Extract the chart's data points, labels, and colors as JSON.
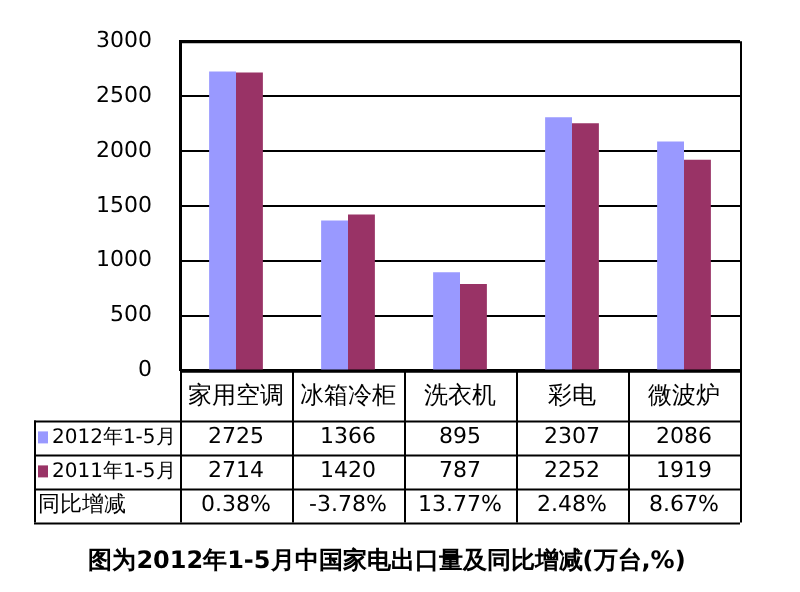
{
  "chart_data": {
    "type": "bar",
    "title": "图为2012年1-5月中国家电出口量及同比增减(万台,%)",
    "categories": [
      "家用空调",
      "冰箱冷柜",
      "洗衣机",
      "彩电",
      "微波炉"
    ],
    "series": [
      {
        "name": "2012年1-5月",
        "color": "#9999ff",
        "values": [
          2725,
          1366,
          895,
          2307,
          2086
        ]
      },
      {
        "name": "2011年1-5月",
        "color": "#993366",
        "values": [
          2714,
          1420,
          787,
          2252,
          1919
        ]
      }
    ],
    "annotations": [
      "同比增减",
      "0.38%",
      "-3.78%",
      "13.77%",
      "2.48%",
      "8.67%"
    ],
    "ylim": [
      0,
      3000
    ],
    "yticks": [
      0,
      500,
      1000,
      1500,
      2000,
      2500,
      3000
    ],
    "grid": "y",
    "legend": "bottom left",
    "data_labels": true
  }
}
